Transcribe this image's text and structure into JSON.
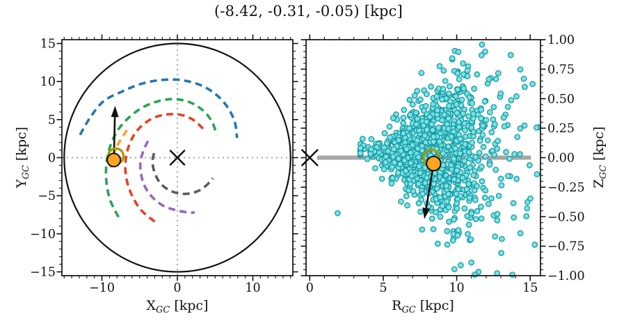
{
  "figure": {
    "title": "(-8.42, -0.31, -0.05) [kpc]",
    "background": "#ffffff"
  },
  "colors": {
    "axis": "#111111",
    "tick_label": "#111111",
    "crosshair": "#9b9b9b",
    "boundary_circle": "#111111",
    "zero_line": "#a6a6a6",
    "scatter_fill": "#7de2e2",
    "scatter_edge": "#159aa6",
    "sun_fill": "#ffa420",
    "sun_edge": "#111111",
    "ring": "#a99a00",
    "arrow": "#111111",
    "center_marker": "#111111"
  },
  "chart_data": [
    {
      "id": "xy-view",
      "type": "line",
      "description": "Face-on Milky Way map: dashed spiral arms, 15 kpc boundary circle, galactic center X, Sun marker with velocity arrow",
      "xlabel": {
        "sym": "X",
        "sub": "GC",
        "unit": "[kpc]"
      },
      "ylabel": {
        "sym": "Y",
        "sub": "GC",
        "unit": "[kpc]"
      },
      "xlim": [
        -15.3,
        15.3
      ],
      "ylim": [
        -15.5,
        15.5
      ],
      "xticks": {
        "major": [
          -10,
          0,
          10
        ],
        "labels": [
          "−10",
          "0",
          "10"
        ],
        "minor_step": 1
      },
      "yticks": {
        "major": [
          15,
          10,
          5,
          0,
          -5,
          -10,
          -15
        ],
        "labels": [
          "15",
          "10",
          "5",
          "0",
          "−5",
          "−10",
          "−15"
        ],
        "minor_step": 1
      },
      "grid": "dotted-crosshair-at-zero",
      "boundary_circle_r": 15,
      "galactic_center": [
        0,
        0
      ],
      "arms": [
        {
          "name": "arm-blue",
          "color": "#1f77b4",
          "points": [
            [
              -12.9,
              3.0
            ],
            [
              -11.6,
              5.2
            ],
            [
              -9.8,
              7.4
            ],
            [
              -7.3,
              8.7
            ],
            [
              -4.8,
              9.7
            ],
            [
              -2.2,
              10.2
            ],
            [
              0.4,
              10.2
            ],
            [
              2.9,
              9.6
            ],
            [
              5.0,
              8.4
            ],
            [
              6.6,
              6.7
            ],
            [
              7.6,
              4.7
            ],
            [
              7.9,
              2.6
            ]
          ]
        },
        {
          "name": "arm-green",
          "color": "#24a653",
          "points": [
            [
              -7.8,
              -7.8
            ],
            [
              -8.9,
              -5.6
            ],
            [
              -9.4,
              -3.2
            ],
            [
              -9.4,
              -0.8
            ],
            [
              -8.9,
              1.5
            ],
            [
              -7.9,
              3.6
            ],
            [
              -6.4,
              5.3
            ],
            [
              -4.6,
              6.6
            ],
            [
              -2.6,
              7.4
            ],
            [
              -0.5,
              7.7
            ],
            [
              1.6,
              7.3
            ],
            [
              3.4,
              6.2
            ],
            [
              4.6,
              4.7
            ],
            [
              5.2,
              3.0
            ]
          ]
        },
        {
          "name": "arm-red",
          "color": "#e8411f",
          "points": [
            [
              -3.0,
              -8.4
            ],
            [
              -4.8,
              -6.9
            ],
            [
              -6.0,
              -5.0
            ],
            [
              -6.7,
              -3.0
            ],
            [
              -6.9,
              -1.0
            ],
            [
              -6.6,
              1.0
            ],
            [
              -5.8,
              2.9
            ],
            [
              -4.6,
              4.3
            ],
            [
              -3.0,
              5.3
            ],
            [
              -1.2,
              5.7
            ],
            [
              0.6,
              5.6
            ],
            [
              2.2,
              4.9
            ],
            [
              3.4,
              3.8
            ]
          ]
        },
        {
          "name": "arm-purple",
          "color": "#9467bd",
          "points": [
            [
              -3.9,
              2.2
            ],
            [
              -4.5,
              0.9
            ],
            [
              -4.9,
              -0.6
            ],
            [
              -4.8,
              -2.2
            ],
            [
              -4.3,
              -3.8
            ],
            [
              -3.3,
              -5.2
            ],
            [
              -1.9,
              -6.3
            ],
            [
              -0.2,
              -6.9
            ],
            [
              1.5,
              -7.2
            ],
            [
              2.3,
              -7.2
            ]
          ]
        },
        {
          "name": "arm-gray",
          "color": "#595959",
          "points": [
            [
              -3.1,
              0.6
            ],
            [
              -3.3,
              -0.6
            ],
            [
              -3.0,
              -2.0
            ],
            [
              -2.3,
              -3.3
            ],
            [
              -1.2,
              -4.2
            ],
            [
              0.2,
              -4.7
            ],
            [
              1.7,
              -4.7
            ],
            [
              3.1,
              -4.2
            ],
            [
              4.2,
              -3.3
            ],
            [
              4.7,
              -2.7
            ]
          ]
        },
        {
          "name": "arm-orange",
          "color": "#ffa228",
          "points": [
            [
              -8.9,
              -1.3
            ],
            [
              -8.5,
              0.3
            ],
            [
              -7.8,
              1.9
            ],
            [
              -6.9,
              3.3
            ],
            [
              -6.5,
              3.8
            ]
          ]
        }
      ],
      "sun": [
        -8.42,
        -0.31
      ],
      "ring": [
        -8.15,
        0.2
      ],
      "velocity_arrow": {
        "from": [
          -8.42,
          -0.31
        ],
        "to": [
          -8.25,
          6.8
        ]
      }
    },
    {
      "id": "rz-view",
      "type": "scatter",
      "description": "Edge-on view: stellar sample in R vs Z, gray mid-plane line, galactic center X, Sun marker with velocity arrow",
      "xlabel": {
        "sym": "R",
        "sub": "GC",
        "unit": "[kpc]"
      },
      "ylabel": {
        "sym": "Z",
        "sub": "GC",
        "unit": "[kpc]"
      },
      "xlim": [
        -0.25,
        15.7
      ],
      "ylim": [
        -1.0,
        1.0
      ],
      "xticks": {
        "major": [
          0,
          5,
          10,
          15
        ],
        "labels": [
          "0",
          "5",
          "10",
          "15"
        ],
        "minor_step": 1
      },
      "yticks": {
        "major": [
          1.0,
          0.75,
          0.5,
          0.25,
          0,
          -0.25,
          -0.5,
          -0.75,
          -1.0
        ],
        "labels": [
          "1.00",
          "0.75",
          "0.50",
          "0.25",
          "0.00",
          "−0.25",
          "−0.50",
          "−0.75",
          "−1.00"
        ],
        "minor_step": 0.05
      },
      "zero_line": {
        "r_from": 0.5,
        "r_to": 15.05,
        "z": 0
      },
      "galactic_center": [
        0,
        0
      ],
      "scatter_model": {
        "n": 1050,
        "seed": 7,
        "r_mean": 8.5,
        "r_sigma": 2.05,
        "r_min": 3.45,
        "r_max": 15.55,
        "z_mean": 0.06,
        "z_sigma_per_kpc": 0.05,
        "z_sigma_r0": 3.3,
        "z_sigma_min": 0.03,
        "z_clip": 0.98,
        "uniform_frac": 0.045,
        "uniform_r": [
          9.5,
          15.5
        ],
        "uniform_z": [
          -1.0,
          0.95
        ]
      },
      "outliers": [
        [
          1.9,
          -0.47
        ],
        [
          3.6,
          0.16
        ]
      ],
      "sun": [
        8.43,
        -0.05
      ],
      "ring": [
        8.29,
        0.0
      ],
      "velocity_arrow": {
        "from": [
          8.43,
          -0.05
        ],
        "to": [
          7.8,
          -0.52
        ]
      }
    }
  ]
}
